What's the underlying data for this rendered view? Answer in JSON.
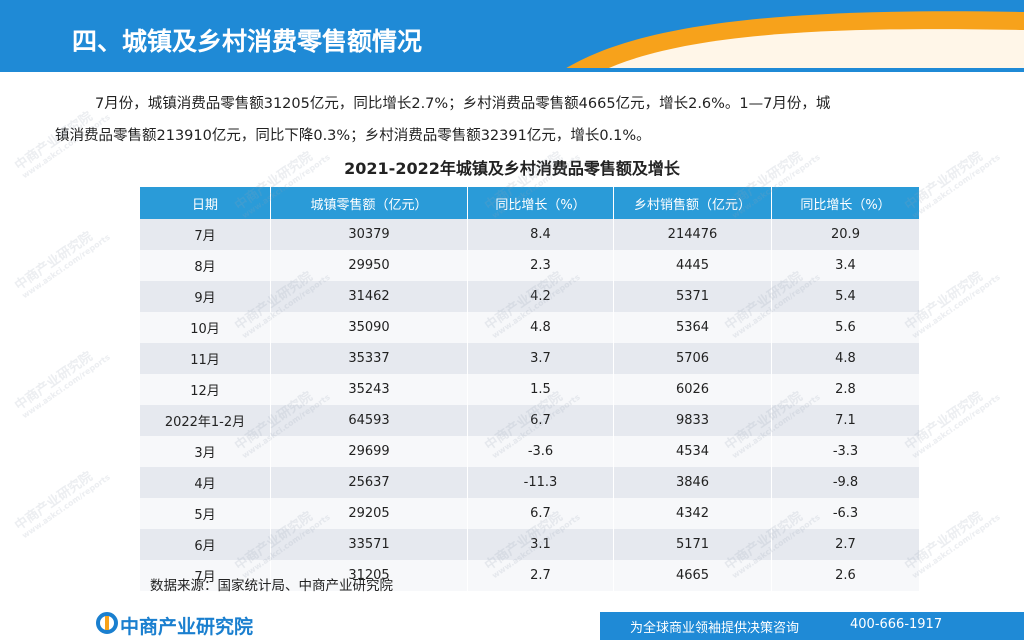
{
  "header": {
    "title": "四、城镇及乡村消费零售额情况"
  },
  "paragraph": [
    "7月份，城镇消费品零售额31205亿元，同比增长2.7%；乡村消费品零售额4665亿元，增长2.6%。1—7月份，城",
    "镇消费品零售额213910亿元，同比下降0.3%；乡村消费品零售额32391亿元，增长0.1%。"
  ],
  "table": {
    "title": "2021-2022年城镇及乡村消费品零售额及增长",
    "columns": [
      "日期",
      "城镇零售额（亿元）",
      "同比增长（%）",
      "乡村销售额（亿元）",
      "同比增长（%）"
    ],
    "rows": [
      [
        "7月",
        "30379",
        "8.4",
        "214476",
        "20.9"
      ],
      [
        "8月",
        "29950",
        "2.3",
        "4445",
        "3.4"
      ],
      [
        "9月",
        "31462",
        "4.2",
        "5371",
        "5.4"
      ],
      [
        "10月",
        "35090",
        "4.8",
        "5364",
        "5.6"
      ],
      [
        "11月",
        "35337",
        "3.7",
        "5706",
        "4.8"
      ],
      [
        "12月",
        "35243",
        "1.5",
        "6026",
        "2.8"
      ],
      [
        "2022年1-2月",
        "64593",
        "6.7",
        "9833",
        "7.1"
      ],
      [
        "3月",
        "29699",
        "-3.6",
        "4534",
        "-3.3"
      ],
      [
        "4月",
        "25637",
        "-11.3",
        "3846",
        "-9.8"
      ],
      [
        "5月",
        "29205",
        "6.7",
        "4342",
        "-6.3"
      ],
      [
        "6月",
        "33571",
        "3.1",
        "5171",
        "2.7"
      ],
      [
        "7月",
        "31205",
        "2.7",
        "4665",
        "2.6"
      ]
    ],
    "source": "数据来源：国家统计局、中商产业研究院"
  },
  "watermark": {
    "name": "中商产业研究院",
    "url": "www.askci.com/reports"
  },
  "footer": {
    "logo": "中商产业研究院",
    "slogan": "为全球商业领袖提供决策咨询",
    "phone": "400-666-1917"
  }
}
